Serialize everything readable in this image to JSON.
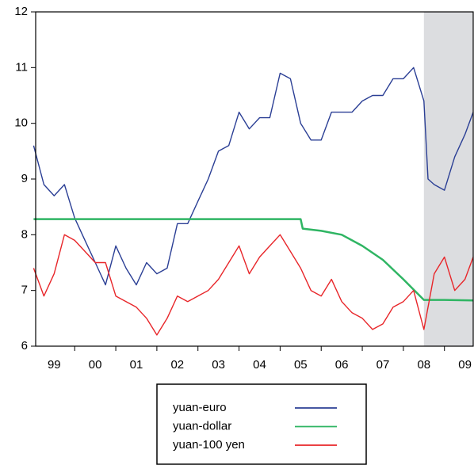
{
  "chart_data": {
    "type": "line",
    "xlim": [
      1999.05,
      2009.7
    ],
    "ylim": [
      6,
      12
    ],
    "yticks": [
      6,
      7,
      8,
      9,
      10,
      11,
      12
    ],
    "xticks": [
      {
        "value": 1999.5,
        "label": "99"
      },
      {
        "value": 2000.5,
        "label": "00"
      },
      {
        "value": 2001.5,
        "label": "01"
      },
      {
        "value": 2002.5,
        "label": "02"
      },
      {
        "value": 2003.5,
        "label": "03"
      },
      {
        "value": 2004.5,
        "label": "04"
      },
      {
        "value": 2005.5,
        "label": "05"
      },
      {
        "value": 2006.5,
        "label": "06"
      },
      {
        "value": 2007.5,
        "label": "07"
      },
      {
        "value": 2008.5,
        "label": "08"
      },
      {
        "value": 2009.5,
        "label": "09"
      }
    ],
    "shaded_range": [
      2008.5,
      2009.7
    ],
    "shade_color": "#dcdde0",
    "series": [
      {
        "name": "yuan-euro",
        "color": "#2b3f95",
        "x": [
          1999.0,
          1999.25,
          1999.5,
          1999.75,
          2000.0,
          2000.25,
          2000.5,
          2000.75,
          2001.0,
          2001.25,
          2001.5,
          2001.75,
          2002.0,
          2002.25,
          2002.5,
          2002.75,
          2003.0,
          2003.25,
          2003.5,
          2003.75,
          2004.0,
          2004.25,
          2004.5,
          2004.75,
          2005.0,
          2005.25,
          2005.5,
          2005.75,
          2006.0,
          2006.25,
          2006.5,
          2006.75,
          2007.0,
          2007.25,
          2007.5,
          2007.75,
          2008.0,
          2008.25,
          2008.5,
          2008.6,
          2008.75,
          2009.0,
          2009.25,
          2009.5,
          2009.7
        ],
        "values": [
          9.6,
          8.9,
          8.7,
          8.9,
          8.3,
          7.9,
          7.5,
          7.1,
          7.8,
          7.4,
          7.1,
          7.5,
          7.3,
          7.4,
          8.2,
          8.2,
          8.6,
          9.0,
          9.5,
          9.6,
          10.2,
          9.9,
          10.1,
          10.1,
          10.9,
          10.8,
          10.0,
          9.7,
          9.7,
          10.2,
          10.2,
          10.2,
          10.4,
          10.5,
          10.5,
          10.8,
          10.8,
          11.0,
          10.4,
          9.0,
          8.9,
          8.8,
          9.4,
          9.8,
          10.2
        ]
      },
      {
        "name": "yuan-dollar",
        "color": "#2fb563",
        "x": [
          1999.0,
          2005.5,
          2005.55,
          2006.0,
          2006.5,
          2007.0,
          2007.5,
          2008.0,
          2008.5,
          2009.0,
          2009.7
        ],
        "values": [
          8.28,
          8.28,
          8.11,
          8.07,
          8.0,
          7.8,
          7.55,
          7.2,
          6.83,
          6.83,
          6.82
        ]
      },
      {
        "name": "yuan-100 yen",
        "color": "#e8262a",
        "x": [
          1999.0,
          1999.25,
          1999.5,
          1999.75,
          2000.0,
          2000.25,
          2000.5,
          2000.75,
          2001.0,
          2001.25,
          2001.5,
          2001.75,
          2002.0,
          2002.25,
          2002.5,
          2002.75,
          2003.0,
          2003.25,
          2003.5,
          2003.75,
          2004.0,
          2004.25,
          2004.5,
          2004.75,
          2005.0,
          2005.25,
          2005.5,
          2005.75,
          2006.0,
          2006.25,
          2006.5,
          2006.75,
          2007.0,
          2007.25,
          2007.5,
          2007.75,
          2008.0,
          2008.25,
          2008.5,
          2008.75,
          2009.0,
          2009.25,
          2009.5,
          2009.7
        ],
        "values": [
          7.4,
          6.9,
          7.3,
          8.0,
          7.9,
          7.7,
          7.5,
          7.5,
          6.9,
          6.8,
          6.7,
          6.5,
          6.2,
          6.5,
          6.9,
          6.8,
          6.9,
          7.0,
          7.2,
          7.5,
          7.8,
          7.3,
          7.6,
          7.8,
          8.0,
          7.7,
          7.4,
          7.0,
          6.9,
          7.2,
          6.8,
          6.6,
          6.5,
          6.3,
          6.4,
          6.7,
          6.8,
          7.0,
          6.3,
          7.3,
          7.6,
          7.0,
          7.2,
          7.6
        ]
      }
    ]
  }
}
